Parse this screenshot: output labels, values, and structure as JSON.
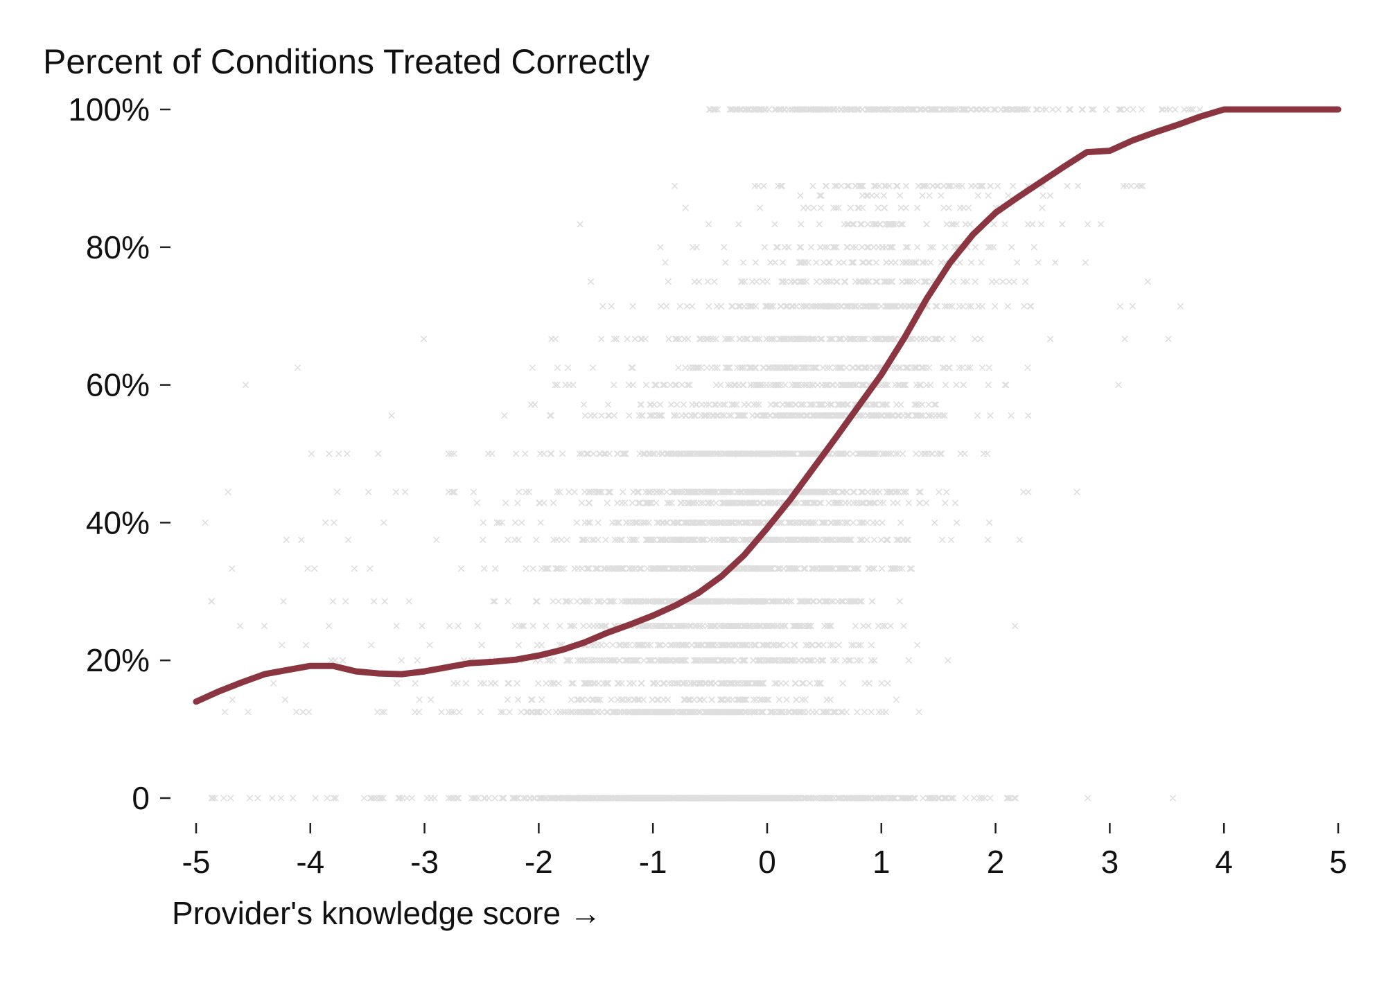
{
  "chart_data": {
    "type": "scatter",
    "title": "Percent of Conditions Treated Correctly",
    "xlabel": "Provider's knowledge score →",
    "ylabel": "",
    "xlim": [
      -5,
      5
    ],
    "ylim": [
      0,
      1
    ],
    "x_ticks": [
      -5,
      -4,
      -3,
      -2,
      -1,
      0,
      1,
      2,
      3,
      4,
      5
    ],
    "x_tick_labels": [
      "-5",
      "-4",
      "-3",
      "-2",
      "-1",
      "0",
      "1",
      "2",
      "3",
      "4",
      "5"
    ],
    "y_ticks": [
      0,
      0.2,
      0.4,
      0.6,
      0.8,
      1.0
    ],
    "y_tick_labels": [
      "0",
      "20%",
      "40%",
      "60%",
      "80%",
      "100%"
    ],
    "grid": false,
    "legend": "none",
    "colors": {
      "points": "#000000",
      "smoothed_line": "#8b3540",
      "text": "#111111"
    },
    "series": [
      {
        "kind": "scatter",
        "marker": "x",
        "description_of_density": "Several thousand semi-transparent x markers; dense cloud centered near x=0, y=0.2-0.6; horizontal bands of points at y=0 and y=1."
      },
      {
        "kind": "line",
        "x": [
          -5.0,
          -4.8,
          -4.6,
          -4.4,
          -4.2,
          -4.0,
          -3.8,
          -3.6,
          -3.4,
          -3.2,
          -3.0,
          -2.8,
          -2.6,
          -2.4,
          -2.2,
          -2.0,
          -1.8,
          -1.6,
          -1.4,
          -1.2,
          -1.0,
          -0.8,
          -0.6,
          -0.4,
          -0.2,
          0.0,
          0.2,
          0.4,
          0.6,
          0.8,
          1.0,
          1.2,
          1.4,
          1.6,
          1.8,
          2.0,
          2.2,
          2.4,
          2.6,
          2.8,
          3.0,
          3.2,
          3.4,
          3.6,
          3.8,
          4.0,
          4.2,
          4.4,
          4.6,
          4.8,
          5.0
        ],
        "y": [
          0.14,
          0.155,
          0.168,
          0.18,
          0.186,
          0.192,
          0.192,
          0.184,
          0.181,
          0.18,
          0.184,
          0.19,
          0.196,
          0.198,
          0.201,
          0.207,
          0.215,
          0.226,
          0.24,
          0.252,
          0.265,
          0.28,
          0.298,
          0.322,
          0.353,
          0.392,
          0.433,
          0.478,
          0.523,
          0.569,
          0.615,
          0.668,
          0.726,
          0.777,
          0.818,
          0.85,
          0.873,
          0.895,
          0.917,
          0.938,
          0.94,
          0.955,
          0.967,
          0.978,
          0.99,
          1.0,
          1.0,
          1.0,
          1.0,
          1.0,
          1.0
        ]
      }
    ]
  }
}
